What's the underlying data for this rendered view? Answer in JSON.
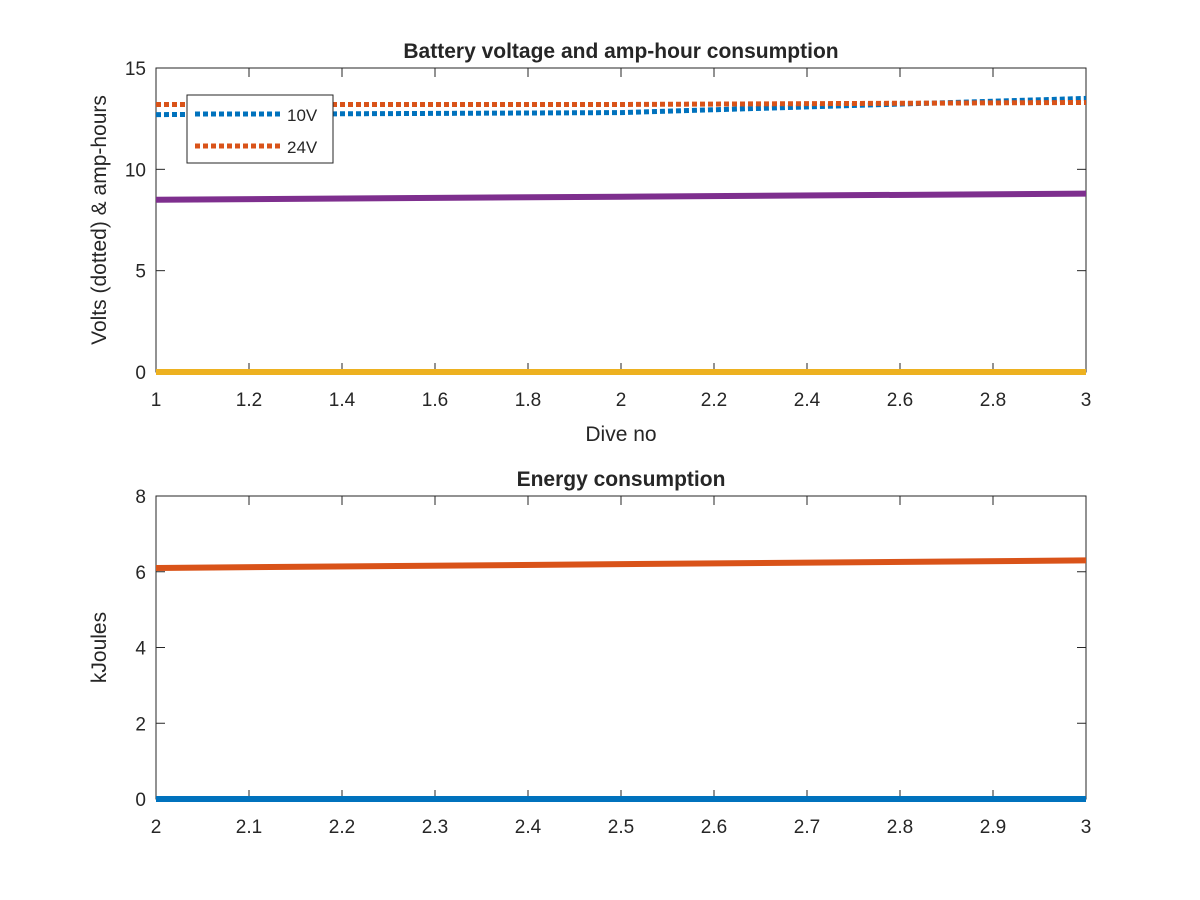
{
  "chart_data": [
    {
      "type": "line",
      "title": "Battery voltage and amp-hour consumption",
      "xlabel": "Dive no",
      "ylabel": "Volts (dotted) & amp-hours",
      "xlim": [
        1,
        3
      ],
      "ylim": [
        0,
        15
      ],
      "xticks": [
        "1",
        "1.2",
        "1.4",
        "1.6",
        "1.8",
        "2",
        "2.2",
        "2.4",
        "2.6",
        "2.8",
        "3"
      ],
      "yticks": [
        "0",
        "5",
        "10",
        "15"
      ],
      "grid": false,
      "legend": {
        "placement": "top-left",
        "entries": [
          "10V",
          "24V"
        ]
      },
      "series": [
        {
          "name": "10V",
          "style": "dotted",
          "color": "#0072BD",
          "x": [
            1,
            2,
            3
          ],
          "y": [
            12.7,
            12.8,
            13.5
          ]
        },
        {
          "name": "24V",
          "style": "dotted",
          "color": "#D95319",
          "x": [
            1,
            2,
            3
          ],
          "y": [
            13.2,
            13.2,
            13.3
          ]
        },
        {
          "style": "solid",
          "color": "#7E2F8E",
          "x": [
            1,
            2,
            3
          ],
          "y": [
            8.5,
            8.65,
            8.8
          ]
        },
        {
          "style": "solid",
          "color": "#EDB120",
          "x": [
            1,
            2,
            3
          ],
          "y": [
            0,
            0,
            0
          ]
        }
      ]
    },
    {
      "type": "line",
      "title": "Energy consumption",
      "xlabel": "",
      "ylabel": "kJoules",
      "xlim": [
        2,
        3
      ],
      "ylim": [
        0,
        8
      ],
      "xticks": [
        "2",
        "2.1",
        "2.2",
        "2.3",
        "2.4",
        "2.5",
        "2.6",
        "2.7",
        "2.8",
        "2.9",
        "3"
      ],
      "yticks": [
        "0",
        "2",
        "4",
        "6",
        "8"
      ],
      "grid": false,
      "series": [
        {
          "style": "solid",
          "color": "#D95319",
          "x": [
            2,
            3
          ],
          "y": [
            6.1,
            6.3
          ]
        },
        {
          "style": "solid",
          "color": "#0072BD",
          "x": [
            2,
            3
          ],
          "y": [
            0,
            0
          ]
        }
      ]
    }
  ]
}
